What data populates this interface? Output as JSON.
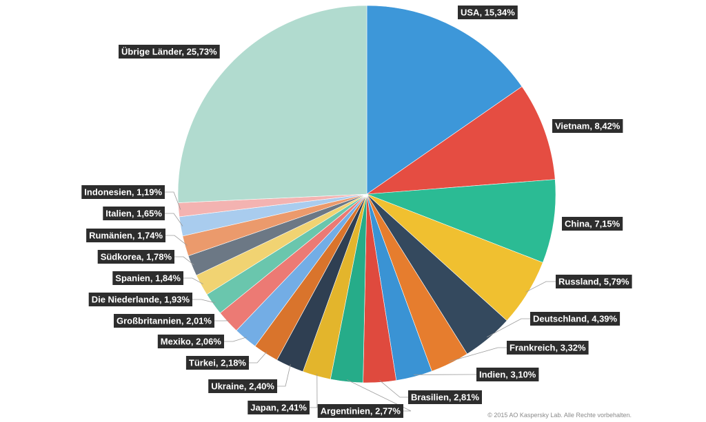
{
  "chart_data": {
    "type": "pie",
    "start": "top",
    "direction": "clockwise",
    "slices": [
      {
        "label": "USA",
        "value_text": "15,34%",
        "value": 15.34,
        "color": "#3d97d9"
      },
      {
        "label": "Vietnam",
        "value_text": "8,42%",
        "value": 8.42,
        "color": "#e54d42"
      },
      {
        "label": "China",
        "value_text": "7,15%",
        "value": 7.15,
        "color": "#2bbb94"
      },
      {
        "label": "Russland",
        "value_text": "5,79%",
        "value": 5.79,
        "color": "#f0c030"
      },
      {
        "label": "Deutschland",
        "value_text": "4,39%",
        "value": 4.39,
        "color": "#34495e"
      },
      {
        "label": "Frankreich",
        "value_text": "3,32%",
        "value": 3.32,
        "color": "#e67d2e"
      },
      {
        "label": "Indien",
        "value_text": "3,10%",
        "value": 3.1,
        "color": "#3a93d4"
      },
      {
        "label": "Brasilien",
        "value_text": "2,81%",
        "value": 2.81,
        "color": "#df4a3e"
      },
      {
        "label": "Argentinien",
        "value_text": "2,77%",
        "value": 2.77,
        "color": "#26ac89"
      },
      {
        "label": "Japan",
        "value_text": "2,41%",
        "value": 2.41,
        "color": "#e3b52c"
      },
      {
        "label": "Ukraine",
        "value_text": "2,40%",
        "value": 2.4,
        "color": "#2f3f52"
      },
      {
        "label": "Türkei",
        "value_text": "2,18%",
        "value": 2.18,
        "color": "#d9742c"
      },
      {
        "label": "Mexiko",
        "value_text": "2,06%",
        "value": 2.06,
        "color": "#73ade5"
      },
      {
        "label": "Großbritannien",
        "value_text": "2,01%",
        "value": 2.01,
        "color": "#ec7a74"
      },
      {
        "label": "Die Niederlande",
        "value_text": "1,93%",
        "value": 1.93,
        "color": "#6ac6ad"
      },
      {
        "label": "Spanien",
        "value_text": "1,84%",
        "value": 1.84,
        "color": "#f1d372"
      },
      {
        "label": "Südkorea",
        "value_text": "1,78%",
        "value": 1.78,
        "color": "#6c7885"
      },
      {
        "label": "Rumänien",
        "value_text": "1,74%",
        "value": 1.74,
        "color": "#eb9a6c"
      },
      {
        "label": "Italien",
        "value_text": "1,65%",
        "value": 1.65,
        "color": "#a9ccee"
      },
      {
        "label": "Indonesien",
        "value_text": "1,19%",
        "value": 1.19,
        "color": "#f3b3b1"
      },
      {
        "label": "Übrige Länder",
        "value_text": "25,73%",
        "value": 25.73,
        "color": "#b1dbcf"
      }
    ]
  },
  "copyright": "© 2015 AO Kaspersky Lab. Alle Rechte vorbehalten."
}
